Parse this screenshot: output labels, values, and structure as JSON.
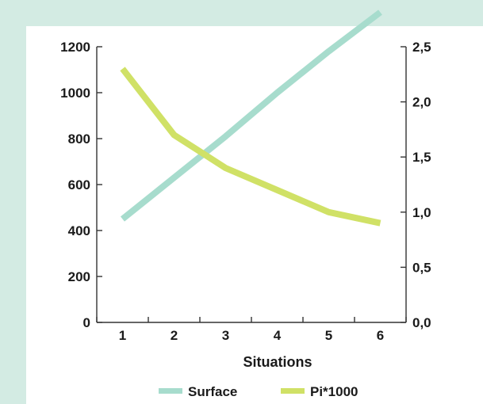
{
  "chart_data": {
    "type": "line",
    "x": [
      1,
      2,
      3,
      4,
      5,
      6
    ],
    "xlabel": "Situations",
    "series": [
      {
        "name": "Surface",
        "axis": "left",
        "color": "#a7dccd",
        "values": [
          450,
          630,
          810,
          1000,
          1180,
          1350
        ]
      },
      {
        "name": "Pi*1000",
        "axis": "right",
        "color": "#d0e166",
        "values": [
          2.3,
          1.7,
          1.4,
          1.2,
          1.0,
          0.9
        ]
      }
    ],
    "y_left": {
      "lim": [
        0,
        1200
      ],
      "ticks": [
        "0",
        "200",
        "400",
        "600",
        "800",
        "1000",
        "1200"
      ]
    },
    "y_right": {
      "lim": [
        0,
        2.5
      ],
      "ticks": [
        "0,0",
        "0,5",
        "1,0",
        "1,5",
        "2,0",
        "2,5"
      ]
    },
    "x_ticks": [
      "1",
      "2",
      "3",
      "4",
      "5",
      "6"
    ],
    "grid": false,
    "legend_position": "bottom"
  }
}
